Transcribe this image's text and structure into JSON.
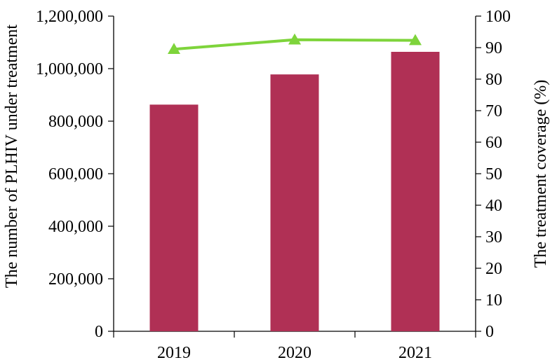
{
  "chart_data": {
    "type": "bar",
    "categories": [
      "2019",
      "2020",
      "2021"
    ],
    "series": [
      {
        "name": "",
        "type": "bar",
        "axis": "left",
        "color": "#b03055",
        "values": [
          863000,
          978000,
          1064000
        ]
      },
      {
        "name": "",
        "type": "line",
        "axis": "right",
        "color": "#7ed43b",
        "marker": "triangle",
        "values": [
          89.5,
          92.5,
          92.3
        ]
      }
    ],
    "title": "",
    "xlabel": "",
    "ylabel": "The number of PLHIV under treatment",
    "y2label": "The treatment coverage (%)",
    "ylim": [
      0,
      1200000
    ],
    "y2lim": [
      0,
      100
    ],
    "y_ticks": [
      "0",
      "200,000",
      "400,000",
      "600,000",
      "800,000",
      "1,000,000",
      "1,200,000"
    ],
    "y2_ticks": [
      "0",
      "10",
      "20",
      "30",
      "40",
      "50",
      "60",
      "70",
      "80",
      "90",
      "100"
    ],
    "grid": false,
    "legend": "none"
  }
}
